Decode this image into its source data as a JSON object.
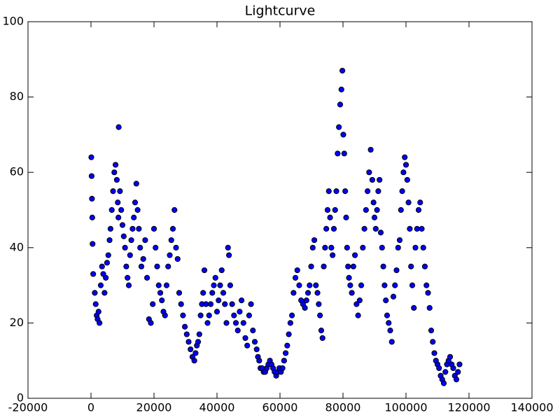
{
  "chart_data": {
    "type": "scatter",
    "title": "Lightcurve",
    "color": "#0000ff",
    "edgecolor": "#000000",
    "xlim": [
      -20000,
      140000
    ],
    "xticks": [
      -20000,
      0,
      20000,
      40000,
      60000,
      80000,
      100000,
      120000,
      140000
    ],
    "ylim": [
      0,
      100
    ],
    "yticks": [
      0,
      20,
      40,
      60,
      80,
      100
    ],
    "grid": false,
    "x": [
      100,
      200,
      300,
      400,
      500,
      700,
      1200,
      1500,
      1800,
      2100,
      2400,
      2700,
      3100,
      3500,
      3900,
      4300,
      4700,
      5100,
      5500,
      5900,
      6200,
      6600,
      7000,
      7400,
      7800,
      8200,
      8500,
      8700,
      8800,
      9200,
      9600,
      10000,
      10400,
      10800,
      11200,
      11600,
      12000,
      12400,
      12800,
      13200,
      13600,
      14000,
      14400,
      14800,
      15200,
      15600,
      16000,
      16600,
      17200,
      17800,
      18400,
      19000,
      19600,
      20000,
      20500,
      21000,
      21500,
      22000,
      22500,
      23000,
      23500,
      24000,
      24500,
      25000,
      25500,
      26000,
      26500,
      27000,
      27500,
      28000,
      28600,
      29200,
      29800,
      30400,
      31000,
      31600,
      32200,
      32800,
      33200,
      33600,
      34000,
      34400,
      34800,
      35200,
      35600,
      36000,
      36500,
      37000,
      37500,
      38000,
      38500,
      39000,
      39500,
      40000,
      40500,
      41000,
      41500,
      42000,
      42500,
      43000,
      43500,
      43800,
      44200,
      44800,
      45400,
      46000,
      46600,
      47200,
      47800,
      48400,
      49000,
      49600,
      50200,
      50800,
      51400,
      52000,
      52600,
      53000,
      53400,
      53800,
      54300,
      54800,
      55300,
      55800,
      56300,
      56800,
      57300,
      57800,
      58300,
      58800,
      59300,
      59800,
      60300,
      60800,
      61300,
      61800,
      62300,
      62800,
      63300,
      63800,
      64300,
      64900,
      65500,
      66100,
      66700,
      67300,
      67900,
      68400,
      68900,
      69400,
      69900,
      70400,
      70900,
      71400,
      71900,
      72300,
      72700,
      73100,
      73500,
      73900,
      74300,
      74700,
      75100,
      75500,
      75900,
      76300,
      76700,
      77100,
      77500,
      77900,
      78300,
      78700,
      79100,
      79500,
      79800,
      80100,
      80400,
      80700,
      81000,
      81300,
      81600,
      81900,
      82300,
      82800,
      83300,
      83800,
      84300,
      84800,
      85300,
      85800,
      86300,
      86800,
      87300,
      87800,
      88300,
      88800,
      89300,
      89700,
      90000,
      90400,
      90800,
      91200,
      91600,
      92000,
      92400,
      92800,
      93200,
      93600,
      94000,
      94500,
      95000,
      95500,
      96000,
      96500,
      97000,
      97500,
      98000,
      98400,
      98800,
      99200,
      99600,
      100000,
      100400,
      100800,
      101200,
      101600,
      102000,
      102500,
      103000,
      103500,
      104000,
      104500,
      105000,
      105500,
      106000,
      106500,
      107000,
      107500,
      108000,
      108500,
      109000,
      109500,
      110000,
      110500,
      111000,
      111500,
      112000,
      112500,
      113000,
      113500,
      114000,
      114500,
      115000,
      115500,
      116000,
      116500,
      117000
    ],
    "values": [
      64,
      59,
      53,
      48,
      41,
      33,
      28,
      25,
      22,
      21,
      23,
      20,
      30,
      35,
      33,
      28,
      32,
      36,
      38,
      42,
      45,
      50,
      55,
      60,
      62,
      58,
      52,
      48,
      72,
      55,
      50,
      46,
      43,
      40,
      35,
      32,
      30,
      38,
      42,
      45,
      48,
      52,
      57,
      50,
      45,
      40,
      35,
      37,
      42,
      32,
      21,
      20,
      25,
      45,
      40,
      35,
      30,
      28,
      26,
      23,
      22,
      30,
      35,
      38,
      42,
      45,
      50,
      40,
      37,
      28,
      25,
      22,
      19,
      17,
      15,
      13,
      11,
      10,
      12,
      14,
      15,
      17,
      22,
      25,
      28,
      34,
      25,
      20,
      22,
      25,
      28,
      30,
      32,
      23,
      26,
      30,
      34,
      28,
      25,
      20,
      40,
      38,
      30,
      25,
      22,
      20,
      18,
      23,
      26,
      20,
      16,
      14,
      22,
      25,
      18,
      15,
      13,
      11,
      10,
      8,
      8,
      7,
      7,
      8,
      9,
      10,
      9,
      8,
      7,
      6,
      7,
      8,
      7,
      8,
      10,
      12,
      14,
      17,
      20,
      22,
      28,
      32,
      34,
      30,
      26,
      25,
      24,
      26,
      28,
      30,
      35,
      40,
      42,
      30,
      28,
      25,
      22,
      18,
      16,
      35,
      40,
      45,
      50,
      55,
      48,
      40,
      38,
      45,
      50,
      55,
      65,
      72,
      78,
      82,
      87,
      70,
      65,
      55,
      48,
      40,
      35,
      32,
      30,
      28,
      35,
      38,
      25,
      22,
      26,
      30,
      40,
      45,
      50,
      55,
      60,
      66,
      58,
      52,
      48,
      45,
      50,
      55,
      58,
      44,
      40,
      35,
      30,
      26,
      22,
      20,
      18,
      15,
      27,
      30,
      34,
      40,
      42,
      50,
      55,
      60,
      64,
      62,
      58,
      52,
      45,
      35,
      30,
      24,
      40,
      45,
      50,
      52,
      45,
      40,
      35,
      30,
      28,
      24,
      18,
      15,
      12,
      10,
      9,
      8,
      6,
      5,
      4,
      7,
      9,
      10,
      11,
      9,
      8,
      6,
      5,
      7,
      9
    ]
  }
}
